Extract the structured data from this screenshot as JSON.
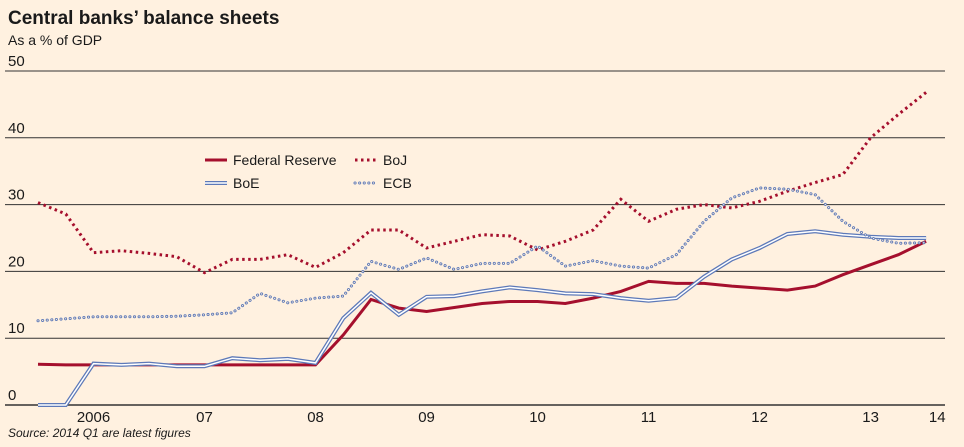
{
  "chart_data": {
    "type": "line",
    "title": "Central banks’ balance sheets",
    "subtitle": "As a % of GDP",
    "source": "Source: 2014 Q1 are latest figures",
    "x": [
      2006,
      2006.25,
      2006.5,
      2006.75,
      2007,
      2007.25,
      2007.5,
      2007.75,
      2008,
      2008.25,
      2008.5,
      2008.75,
      2009,
      2009.25,
      2009.5,
      2009.75,
      2010,
      2010.25,
      2010.5,
      2010.75,
      2011,
      2011.25,
      2011.5,
      2011.75,
      2012,
      2012.25,
      2012.5,
      2012.75,
      2013,
      2013.25,
      2013.5,
      2013.75,
      2014
    ],
    "series": [
      {
        "name": "Federal Reserve",
        "color": "#a50f2d",
        "style": "solid",
        "values": [
          6.1,
          6.0,
          6.0,
          6.0,
          6.0,
          6.0,
          6.0,
          6.0,
          6.0,
          6.0,
          6.0,
          10.5,
          15.8,
          14.5,
          14.0,
          14.6,
          15.2,
          15.5,
          15.5,
          15.2,
          16.0,
          17.0,
          18.5,
          18.2,
          18.2,
          17.8,
          17.5,
          17.2,
          17.8,
          19.5,
          21.0,
          22.5,
          24.5
        ]
      },
      {
        "name": "BoJ",
        "color": "#a50f2d",
        "style": "dotted",
        "values": [
          30.3,
          28.6,
          22.8,
          23.1,
          22.7,
          22.2,
          19.8,
          21.8,
          21.8,
          22.5,
          20.6,
          22.8,
          26.2,
          26.2,
          23.5,
          24.5,
          25.5,
          25.3,
          23.2,
          24.5,
          26.2,
          30.8,
          27.5,
          29.3,
          30.0,
          29.5,
          30.5,
          32.0,
          33.3,
          34.5,
          40.0,
          43.5,
          46.8
        ]
      },
      {
        "name": "BoE",
        "color": "#5d79b8",
        "style": "double",
        "values": [
          0,
          0,
          6.2,
          6.0,
          6.2,
          5.8,
          5.8,
          7.0,
          6.7,
          6.9,
          6.3,
          13.0,
          16.8,
          13.5,
          16.2,
          16.3,
          17.0,
          17.6,
          17.2,
          16.7,
          16.6,
          16.0,
          15.6,
          16.0,
          19.2,
          21.8,
          23.5,
          25.6,
          26.0,
          25.5,
          25.2,
          25.0,
          25.0
        ]
      },
      {
        "name": "ECB",
        "color": "#5d79b8",
        "style": "circles",
        "values": [
          12.6,
          12.9,
          13.2,
          13.2,
          13.2,
          13.3,
          13.5,
          13.8,
          16.7,
          15.3,
          16.0,
          16.3,
          21.5,
          20.3,
          22.0,
          20.3,
          21.2,
          21.2,
          23.8,
          20.8,
          21.6,
          20.8,
          20.5,
          22.5,
          27.5,
          31.0,
          32.5,
          32.3,
          31.5,
          27.5,
          25.0,
          24.2,
          24.3
        ]
      }
    ],
    "xlim": [
      2006,
      2014.17
    ],
    "xticks": [
      {
        "value": 2006.5,
        "label": "2006"
      },
      {
        "value": 2007.5,
        "label": "07"
      },
      {
        "value": 2008.5,
        "label": "08"
      },
      {
        "value": 2009.5,
        "label": "09"
      },
      {
        "value": 2010.5,
        "label": "10"
      },
      {
        "value": 2011.5,
        "label": "11"
      },
      {
        "value": 2012.5,
        "label": "12"
      },
      {
        "value": 2013.5,
        "label": "13"
      },
      {
        "value": 2014.1,
        "label": "14"
      }
    ],
    "ylim": [
      0,
      50
    ],
    "yticks": [
      0,
      10,
      20,
      30,
      40,
      50
    ],
    "grid": true
  }
}
